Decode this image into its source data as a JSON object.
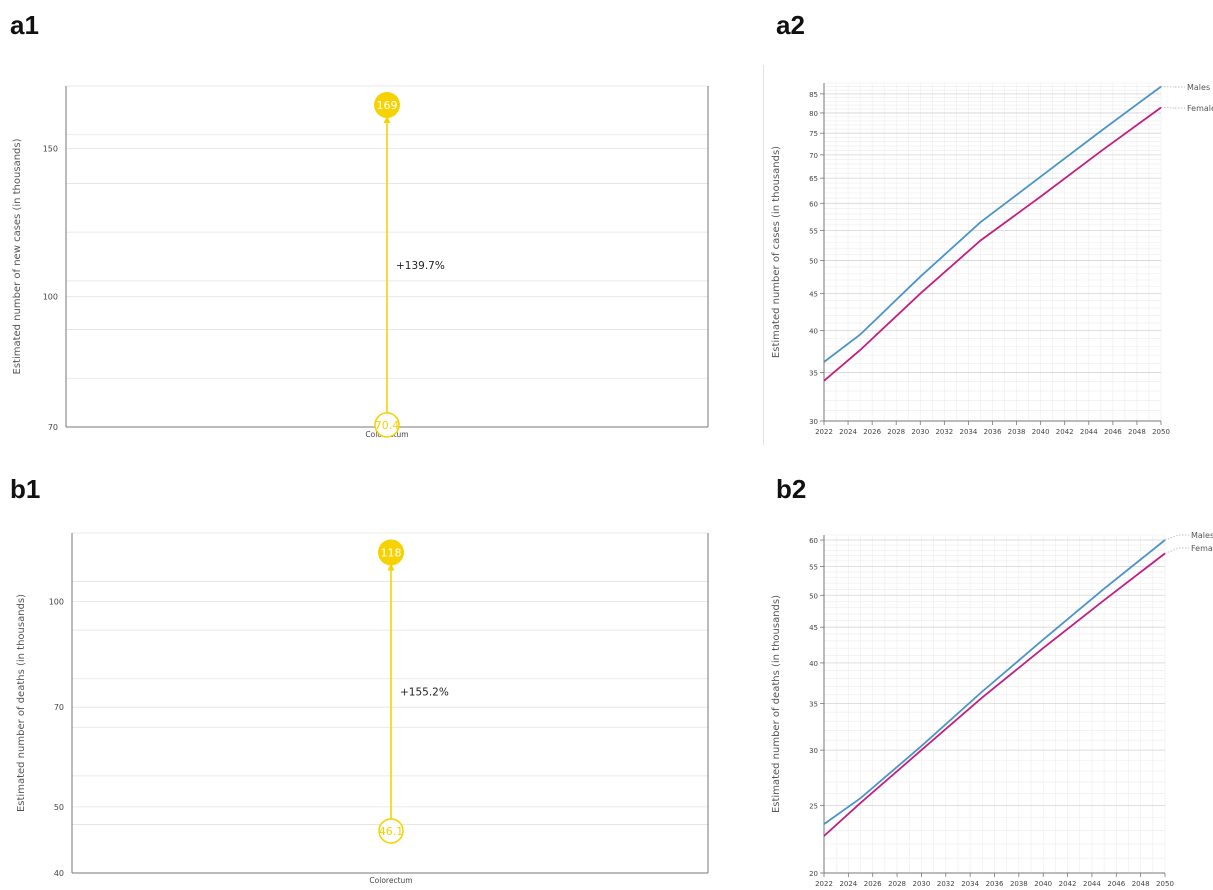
{
  "panels": {
    "a1": "a1",
    "a2": "a2",
    "b1": "b1",
    "b2": "b2"
  },
  "colors": {
    "yellow": "#f6d200",
    "males": "#4a94c9",
    "females": "#c21f7f",
    "grid": "#e3e3e3",
    "axis": "#777777"
  },
  "chart_data": [
    {
      "id": "a1",
      "type": "lollipop",
      "ylabel": "Estimated number of new cases (in thousands)",
      "categories": [
        "Colorectum"
      ],
      "y_scale": "log",
      "ylim": [
        70,
        178
      ],
      "yticks": [
        70,
        100,
        150
      ],
      "start_value": 70.4,
      "end_value": 169,
      "start_label": "70.4",
      "end_label": "169",
      "change_label": "+139.7%"
    },
    {
      "id": "a2",
      "type": "line",
      "ylabel": "Estimated number of cases (in thousands)",
      "y_scale": "log",
      "ylim": [
        30,
        88
      ],
      "yticks": [
        30,
        35,
        40,
        45,
        50,
        55,
        60,
        65,
        70,
        75,
        80,
        85
      ],
      "xticks": [
        2022,
        2024,
        2026,
        2028,
        2030,
        2032,
        2034,
        2036,
        2038,
        2040,
        2042,
        2044,
        2046,
        2048,
        2050
      ],
      "series": [
        {
          "name": "Males",
          "x": [
            2022,
            2025,
            2030,
            2035,
            2040,
            2045,
            2050
          ],
          "values": [
            36.2,
            39.5,
            47.5,
            56.5,
            65.3,
            75.5,
            87
          ]
        },
        {
          "name": "Females",
          "x": [
            2022,
            2025,
            2030,
            2035,
            2040,
            2045,
            2050
          ],
          "values": [
            34.1,
            37.6,
            45.0,
            53.3,
            61.3,
            70.8,
            81.4
          ]
        }
      ]
    },
    {
      "id": "b1",
      "type": "lollipop",
      "ylabel": "Estimated number of deaths (in thousands)",
      "categories": [
        "Colorectum"
      ],
      "y_scale": "log",
      "ylim": [
        40,
        126
      ],
      "yticks": [
        40,
        50,
        70,
        100
      ],
      "start_value": 46.1,
      "end_value": 118,
      "start_label": "46.1",
      "end_label": "118",
      "change_label": "+155.2%"
    },
    {
      "id": "b2",
      "type": "line",
      "ylabel": "Estimated number of deaths (in thousands)",
      "y_scale": "log",
      "ylim": [
        20,
        61
      ],
      "yticks": [
        20,
        25,
        30,
        35,
        40,
        45,
        50,
        55,
        60
      ],
      "xticks": [
        2022,
        2024,
        2026,
        2028,
        2030,
        2032,
        2034,
        2036,
        2038,
        2040,
        2042,
        2044,
        2046,
        2048,
        2050
      ],
      "series": [
        {
          "name": "Males",
          "x": [
            2022,
            2025,
            2030,
            2035,
            2040,
            2045,
            2050
          ],
          "values": [
            23.5,
            25.6,
            30.4,
            36.4,
            43.2,
            51.1,
            60.0
          ]
        },
        {
          "name": "Females",
          "x": [
            2022,
            2025,
            2030,
            2035,
            2040,
            2045,
            2050
          ],
          "values": [
            22.6,
            25.2,
            30.0,
            35.7,
            42.0,
            49.2,
            57.4
          ]
        }
      ]
    }
  ]
}
